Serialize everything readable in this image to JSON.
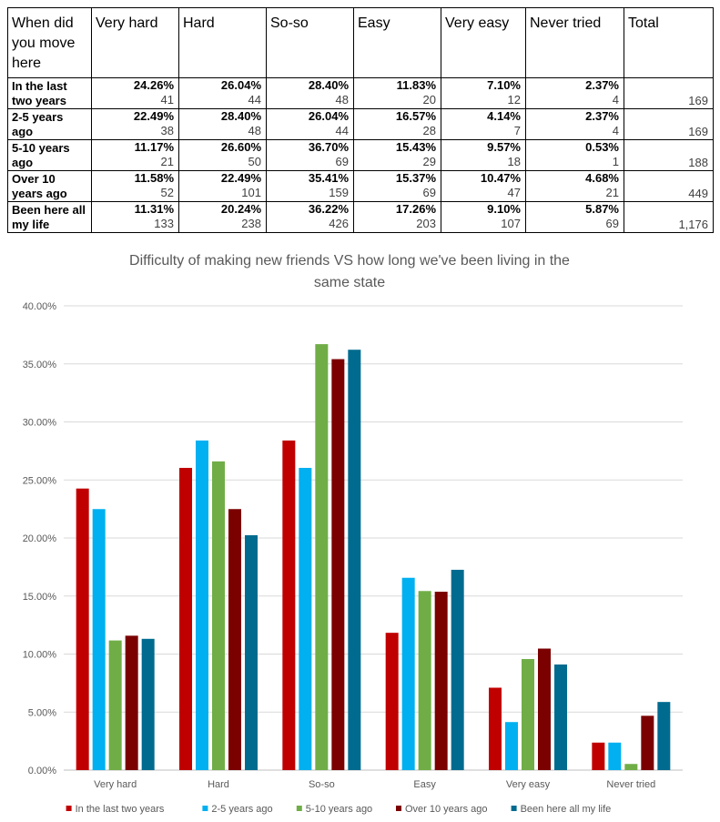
{
  "table": {
    "headers": [
      "When did you move here",
      "Very hard",
      "Hard",
      "So-so",
      "Easy",
      "Very easy",
      "Never tried",
      "Total"
    ],
    "rows": [
      {
        "label": "In the last two years",
        "cells": [
          {
            "pct": "24.26%",
            "count": "41"
          },
          {
            "pct": "26.04%",
            "count": "44"
          },
          {
            "pct": "28.40%",
            "count": "48"
          },
          {
            "pct": "11.83%",
            "count": "20"
          },
          {
            "pct": "7.10%",
            "count": "12"
          },
          {
            "pct": "2.37%",
            "count": "4"
          }
        ],
        "total": "169"
      },
      {
        "label": "2-5 years ago",
        "cells": [
          {
            "pct": "22.49%",
            "count": "38"
          },
          {
            "pct": "28.40%",
            "count": "48"
          },
          {
            "pct": "26.04%",
            "count": "44"
          },
          {
            "pct": "16.57%",
            "count": "28"
          },
          {
            "pct": "4.14%",
            "count": "7"
          },
          {
            "pct": "2.37%",
            "count": "4"
          }
        ],
        "total": "169"
      },
      {
        "label": "5-10 years ago",
        "cells": [
          {
            "pct": "11.17%",
            "count": "21"
          },
          {
            "pct": "26.60%",
            "count": "50"
          },
          {
            "pct": "36.70%",
            "count": "69"
          },
          {
            "pct": "15.43%",
            "count": "29"
          },
          {
            "pct": "9.57%",
            "count": "18"
          },
          {
            "pct": "0.53%",
            "count": "1"
          }
        ],
        "total": "188"
      },
      {
        "label": "Over 10 years ago",
        "cells": [
          {
            "pct": "11.58%",
            "count": "52"
          },
          {
            "pct": "22.49%",
            "count": "101"
          },
          {
            "pct": "35.41%",
            "count": "159"
          },
          {
            "pct": "15.37%",
            "count": "69"
          },
          {
            "pct": "10.47%",
            "count": "47"
          },
          {
            "pct": "4.68%",
            "count": "21"
          }
        ],
        "total": "449"
      },
      {
        "label": "Been here all my life",
        "cells": [
          {
            "pct": "11.31%",
            "count": "133"
          },
          {
            "pct": "20.24%",
            "count": "238"
          },
          {
            "pct": "36.22%",
            "count": "426"
          },
          {
            "pct": "17.26%",
            "count": "203"
          },
          {
            "pct": "9.10%",
            "count": "107"
          },
          {
            "pct": "5.87%",
            "count": "69"
          }
        ],
        "total": "1,176"
      }
    ]
  },
  "chart_data": {
    "type": "bar",
    "title": "Difficulty of making new friends VS how long we've been living in the same state",
    "xlabel": "",
    "ylabel": "",
    "categories": [
      "Very hard",
      "Hard",
      "So-so",
      "Easy",
      "Very easy",
      "Never tried"
    ],
    "series": [
      {
        "name": "In the last two years",
        "color": "#c00000",
        "values": [
          24.26,
          26.04,
          28.4,
          11.83,
          7.1,
          2.37
        ]
      },
      {
        "name": "2-5 years ago",
        "color": "#00b0f0",
        "values": [
          22.49,
          28.4,
          26.04,
          16.57,
          4.14,
          2.37
        ]
      },
      {
        "name": "5-10 years ago",
        "color": "#70ad47",
        "values": [
          11.17,
          26.6,
          36.7,
          15.43,
          9.57,
          0.53
        ]
      },
      {
        "name": "Over 10 years ago",
        "color": "#7b0000",
        "values": [
          11.58,
          22.49,
          35.41,
          15.37,
          10.47,
          4.68
        ]
      },
      {
        "name": "Been here all my life",
        "color": "#006b8f",
        "values": [
          11.31,
          20.24,
          36.22,
          17.26,
          9.1,
          5.87
        ]
      }
    ],
    "ylim": [
      0,
      40
    ],
    "yticks": [
      "0.00%",
      "5.00%",
      "10.00%",
      "15.00%",
      "20.00%",
      "25.00%",
      "30.00%",
      "35.00%",
      "40.00%"
    ],
    "grid": true,
    "legend_position": "bottom"
  }
}
